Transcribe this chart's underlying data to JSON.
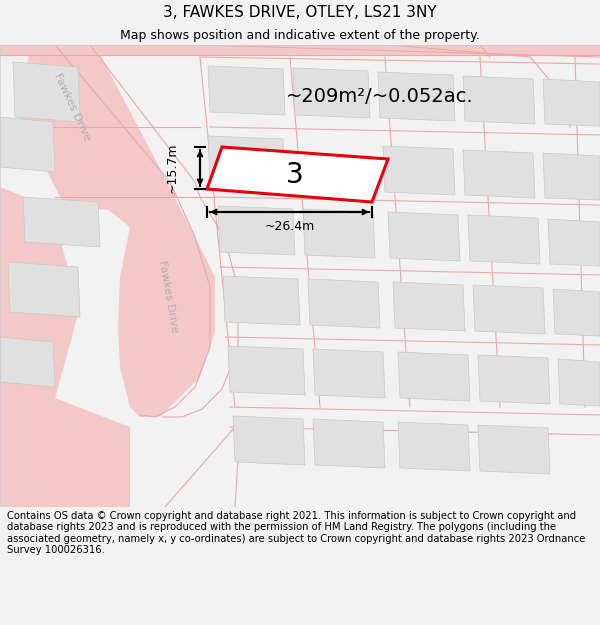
{
  "title": "3, FAWKES DRIVE, OTLEY, LS21 3NY",
  "subtitle": "Map shows position and indicative extent of the property.",
  "area_text": "~209m²/~0.052ac.",
  "plot_number": "3",
  "width_label": "~26.4m",
  "height_label": "~15.7m",
  "footer_text": "Contains OS data © Crown copyright and database right 2021. This information is subject to Crown copyright and database rights 2023 and is reproduced with the permission of HM Land Registry. The polygons (including the associated geometry, namely x, y co-ordinates) are subject to Crown copyright and database rights 2023 Ordnance Survey 100026316.",
  "bg_color": "#f2f2f2",
  "map_bg": "#ffffff",
  "road_color": "#f5c8c8",
  "road_line_color": "#e8a8a8",
  "building_color": "#e0e0e0",
  "building_edge_color": "#c8c8c8",
  "highlight_color": "#e8000a",
  "dim_line_color": "#000000",
  "road_label_color": "#b0b0b0",
  "title_fontsize": 11,
  "subtitle_fontsize": 9,
  "footer_fontsize": 7.2,
  "area_fontsize": 14,
  "plot_num_fontsize": 20,
  "dim_fontsize": 9,
  "road_label_fontsize": 8
}
